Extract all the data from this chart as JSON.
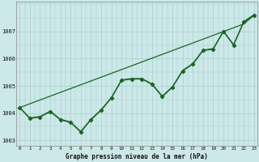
{
  "title": "Graphe pression niveau de la mer (hPa)",
  "background_color": "#cce8e8",
  "grid_color": "#aacccc",
  "line_color": "#1a6620",
  "hours": [
    0,
    1,
    2,
    3,
    4,
    5,
    6,
    7,
    8,
    9,
    10,
    11,
    12,
    13,
    14,
    15,
    16,
    17,
    18,
    19,
    20,
    21,
    22,
    23
  ],
  "pressure_main": [
    1004.2,
    1003.8,
    1003.85,
    1004.05,
    1003.75,
    1003.65,
    1003.3,
    1003.75,
    1004.1,
    1004.55,
    1005.2,
    1005.25,
    1005.25,
    1005.05,
    1004.6,
    1004.95,
    1005.55,
    1005.8,
    1006.3,
    1006.35,
    1007.0,
    1006.5,
    1007.35,
    1007.6
  ],
  "pressure_smooth": [
    1004.2,
    1003.82,
    1003.87,
    1004.07,
    1003.77,
    1003.67,
    1003.32,
    1003.77,
    1004.12,
    1004.57,
    1005.22,
    1005.27,
    1005.27,
    1005.07,
    1004.62,
    1004.97,
    1005.57,
    1005.82,
    1006.32,
    1006.37,
    1007.02,
    1006.52,
    1007.37,
    1007.62
  ],
  "pressure_trend": [
    1004.2,
    1004.34,
    1004.48,
    1004.62,
    1004.76,
    1004.9,
    1005.04,
    1005.18,
    1005.32,
    1005.46,
    1005.6,
    1005.74,
    1005.88,
    1006.02,
    1006.16,
    1006.3,
    1006.44,
    1006.58,
    1006.72,
    1006.86,
    1007.0,
    1007.14,
    1007.28,
    1007.6
  ],
  "ylim_min": 1002.8,
  "ylim_max": 1008.1,
  "yticks": [
    1003,
    1004,
    1005,
    1006,
    1007
  ],
  "xlim_min": -0.3,
  "xlim_max": 23.3
}
